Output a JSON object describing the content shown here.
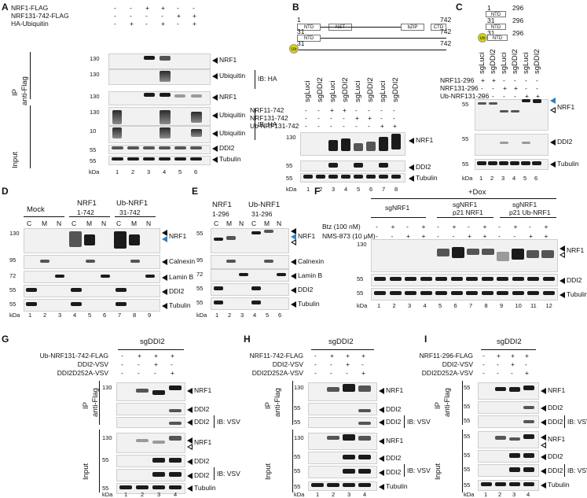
{
  "panels": {
    "A": {
      "label": "A",
      "conditions": [
        "NRF1-FLAG",
        "NRF131-742-FLAG",
        "HA-Ubiquitin"
      ],
      "signs": [
        [
          "-",
          "-",
          "+",
          "+",
          "-",
          "-"
        ],
        [
          "-",
          "-",
          "-",
          "-",
          "+",
          "+"
        ],
        [
          "-",
          "+",
          "-",
          "+",
          "-",
          "+"
        ]
      ],
      "group_ip": "IP",
      "group_ip2": "anti-Flag",
      "group_input": "Input",
      "rows": [
        "NRF1",
        "Ubiquitin",
        "NRF1",
        "Ubiquitin",
        "Ubiquitin",
        "DDI2",
        "Tubulin"
      ],
      "ib": "IB: HA",
      "markers": [
        "130",
        "130",
        "130",
        "130",
        "10",
        "55",
        "55"
      ],
      "lanes": [
        "1",
        "2",
        "3",
        "4",
        "5",
        "6"
      ],
      "kda": "kDa"
    },
    "B": {
      "label": "B",
      "conditions": [
        "NRF11-742",
        "NRF131-742",
        "Ub-NRF131-742"
      ],
      "top": [
        "sgLuci",
        "sgDDI2",
        "sgLuci",
        "sgDDI2",
        "sgLuci",
        "sgDDI2",
        "sgLuci",
        "sgDDI2"
      ],
      "signs": [
        [
          "-",
          "-",
          "+",
          "+",
          "-",
          "-",
          "-",
          "-"
        ],
        [
          "-",
          "-",
          "-",
          "-",
          "+",
          "+",
          "-",
          "-"
        ],
        [
          "-",
          "-",
          "-",
          "-",
          "-",
          "-",
          "+",
          "+"
        ]
      ],
      "rows": [
        "NRF1",
        "DDI2",
        "Tubulin"
      ],
      "markers": [
        "130",
        "55",
        "55"
      ],
      "lanes": [
        "1",
        "2",
        "3",
        "4",
        "5",
        "6",
        "7",
        "8"
      ],
      "kda": "kDa",
      "domains": [
        "NTD",
        "NST",
        "bZIP",
        "CTD"
      ],
      "dom_nums": [
        "1",
        "742",
        "31",
        "742",
        "31",
        "742"
      ]
    },
    "C": {
      "label": "C",
      "conditions": [
        "NRF11-296",
        "NRF131-296",
        "Ub-NRF131-296"
      ],
      "top": [
        "sgLuci",
        "sgDDI2",
        "sgLuci",
        "sgDDI2",
        "sgLuci",
        "sgDDI2"
      ],
      "signs": [
        [
          "+",
          "+",
          "-",
          "-",
          "-",
          "-"
        ],
        [
          "-",
          "-",
          "+",
          "+",
          "-",
          "-"
        ],
        [
          "-",
          "-",
          "-",
          "-",
          "+",
          "+"
        ]
      ],
      "rows": [
        "NRF1",
        "DDI2",
        "Tubulin"
      ],
      "markers": [
        "55",
        "55",
        "55"
      ],
      "lanes": [
        "1",
        "2",
        "3",
        "4",
        "5",
        "6"
      ],
      "kda": "kDa",
      "dom_nums": [
        "1",
        "296",
        "31",
        "296",
        "31",
        "296"
      ]
    },
    "D": {
      "label": "D",
      "groups": [
        "Mock",
        "NRF1",
        "1-742",
        "Ub-NRF1",
        "31-742"
      ],
      "fractions": [
        "C",
        "M",
        "N",
        "C",
        "M",
        "N",
        "C",
        "M",
        "N"
      ],
      "rows": [
        "NRF1",
        "Calnexin",
        "Lamin B",
        "DDI2",
        "Tubulin"
      ],
      "markers": [
        "130",
        "95",
        "72",
        "55",
        "55"
      ],
      "lanes": [
        "1",
        "2",
        "3",
        "4",
        "5",
        "6",
        "7",
        "8",
        "9"
      ],
      "kda": "kDa"
    },
    "E": {
      "label": "E",
      "groups": [
        "NRF1",
        "1-296",
        "Ub-NRF1",
        "31-296"
      ],
      "fractions": [
        "C",
        "M",
        "N",
        "C",
        "M",
        "N"
      ],
      "rows": [
        "NRF1",
        "Calnexin",
        "Lamin B",
        "DDI2",
        "Tubulin"
      ],
      "markers": [
        "55",
        "95",
        "72",
        "55",
        "55"
      ],
      "lanes": [
        "1",
        "2",
        "3",
        "4",
        "5",
        "6"
      ],
      "kda": "kDa"
    },
    "F": {
      "label": "F",
      "dox": "+Dox",
      "groups": [
        "sgNRF1",
        "sgNRF1",
        "p21 NRF1",
        "sgNRF1",
        "p21 Ub-NRF1"
      ],
      "conditions": [
        "Btz (100 nM)",
        "NMS-873 (10 μM)"
      ],
      "signs": [
        [
          "-",
          "+",
          "-",
          "+",
          "-",
          "+",
          "-",
          "+",
          "-",
          "+",
          "-",
          "+"
        ],
        [
          "-",
          "-",
          "+",
          "+",
          "-",
          "-",
          "+",
          "+",
          "-",
          "-",
          "+",
          "+"
        ]
      ],
      "rows": [
        "NRF1",
        "DDI2",
        "Tubulin"
      ],
      "markers": [
        "130",
        "55",
        "55"
      ],
      "lanes": [
        "1",
        "2",
        "3",
        "4",
        "5",
        "6",
        "7",
        "8",
        "9",
        "10",
        "11",
        "12"
      ],
      "kda": "kDa"
    },
    "G": {
      "label": "G",
      "top": "sgDDI2",
      "conditions": [
        "Ub-NRF131-742-FLAG",
        "DDI2-VSV",
        "DDI2D252A-VSV"
      ],
      "signs": [
        [
          "-",
          "+",
          "+",
          "+"
        ],
        [
          "-",
          "-",
          "+",
          "-"
        ],
        [
          "-",
          "-",
          "-",
          "+"
        ]
      ],
      "rows": [
        "NRF1",
        "DDI2",
        "DDI2",
        "NRF1",
        "DDI2",
        "DDI2",
        "Tubulin"
      ],
      "ib": "IB: VSV",
      "group_ip": "IP",
      "group_ip2": "anti-Flag",
      "group_input": "Input",
      "markers": [
        "130",
        "",
        "",
        "130",
        "55",
        "",
        "55"
      ],
      "lanes": [
        "1",
        "2",
        "3",
        "4"
      ],
      "kda": "kDa"
    },
    "H": {
      "label": "H",
      "top": "sgDDI2",
      "conditions": [
        "NRF11-742-FLAG",
        "DDI2-VSV",
        "DDI2D252A-VSV"
      ],
      "signs": [
        [
          "-",
          "+",
          "+",
          "+"
        ],
        [
          "-",
          "-",
          "+",
          "-"
        ],
        [
          "-",
          "-",
          "-",
          "+"
        ]
      ],
      "rows": [
        "NRF1",
        "DDI2",
        "DDI2",
        "NRF1",
        "DDI2",
        "DDI2",
        "Tubulin"
      ],
      "ib": "IB: VSV",
      "group_ip": "IP",
      "group_ip2": "anti-Flag",
      "group_input": "Input",
      "markers": [
        "130",
        "55",
        "55",
        "130",
        "55",
        "55",
        "55"
      ],
      "lanes": [
        "1",
        "2",
        "3",
        "4"
      ],
      "kda": "kDa"
    },
    "I": {
      "label": "I",
      "top": "sgDDI2",
      "conditions": [
        "NRF11-296-FLAG",
        "DDI2-VSV",
        "DDI2D252A-VSV"
      ],
      "signs": [
        [
          "-",
          "+",
          "+",
          "+"
        ],
        [
          "-",
          "-",
          "+",
          "-"
        ],
        [
          "-",
          "-",
          "-",
          "+"
        ]
      ],
      "rows": [
        "NRF1",
        "DDI2",
        "DDI2",
        "NRF1",
        "DDI2",
        "DDI2",
        "Tubulin"
      ],
      "ib": "IB: VSV",
      "group_ip": "IP",
      "group_ip2": "anti-Flag",
      "group_input": "Input",
      "markers": [
        "55",
        "55",
        "55",
        "55",
        "55",
        "55",
        "55"
      ],
      "lanes": [
        "1",
        "2",
        "3",
        "4"
      ],
      "kda": "kDa"
    }
  }
}
